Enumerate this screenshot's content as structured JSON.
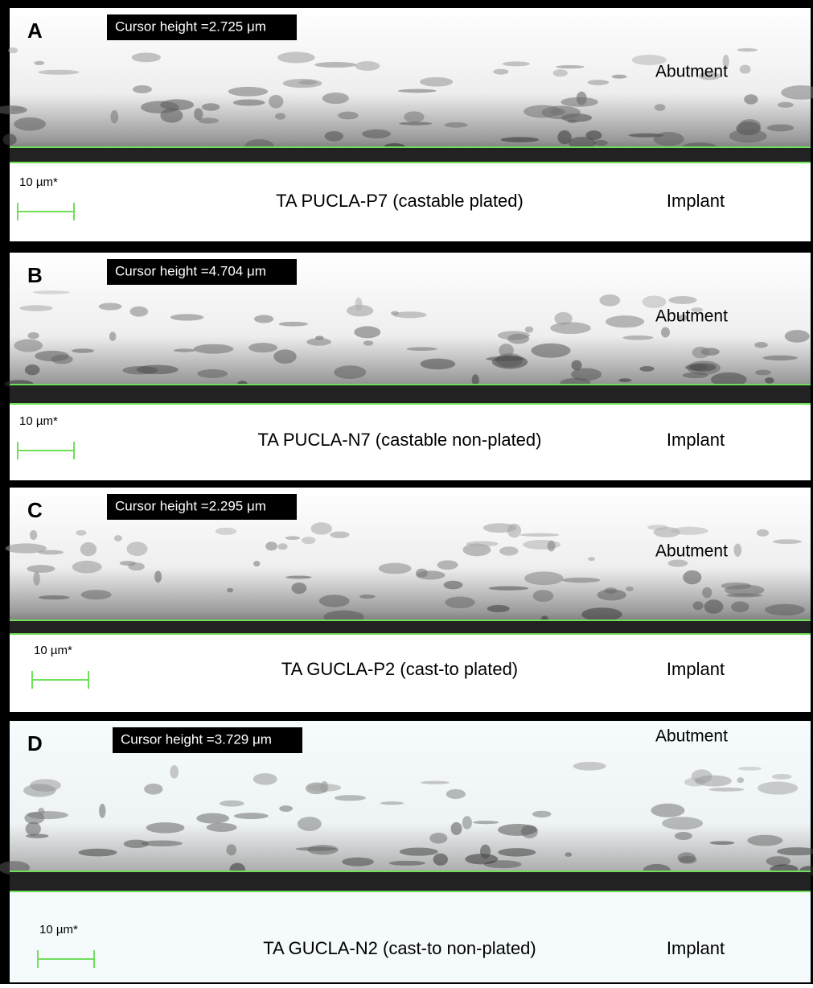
{
  "panels": [
    {
      "letter": "A",
      "cursor_label": "Cursor height =2.725 μm",
      "top_label": "Abutment",
      "scale_label": "10 µm*",
      "caption": "TA PUCLA-P7 (castable plated)",
      "bottom_label": "Implant"
    },
    {
      "letter": "B",
      "cursor_label": "Cursor height =4.704 μm",
      "top_label": "Abutment",
      "scale_label": "10 µm*",
      "caption": "TA PUCLA-N7 (castable non-plated)",
      "bottom_label": "Implant"
    },
    {
      "letter": "C",
      "cursor_label": "Cursor height =2.295 μm",
      "top_label": "Abutment",
      "scale_label": "10 µm*",
      "caption": "TA GUCLA-P2 (cast-to plated)",
      "bottom_label": "Implant"
    },
    {
      "letter": "D",
      "cursor_label": "Cursor height =3.729 μm",
      "top_label": "Abutment",
      "scale_label": "10 µm*",
      "caption": "TA GUCLA-N2 (cast-to non-plated)",
      "bottom_label": "Implant"
    }
  ]
}
